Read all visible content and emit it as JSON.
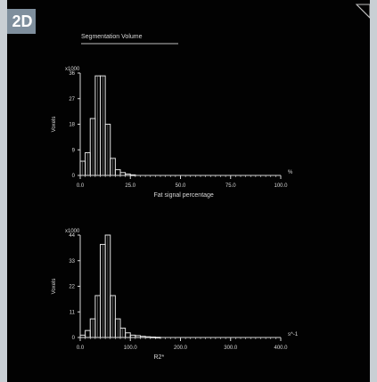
{
  "badge": {
    "text": "2D"
  },
  "viewer": {
    "title": "Segmentation Volume"
  },
  "chart_data": [
    {
      "type": "bar",
      "title": "",
      "xlabel": "Fat signal percentage",
      "ylabel": "Voxels",
      "unit_x": "%",
      "y_multiplier_label": "x1000",
      "xlim": [
        0,
        100
      ],
      "ylim": [
        0,
        36
      ],
      "x_ticks": [
        "0.0",
        "25.0",
        "50.0",
        "75.0",
        "100.0"
      ],
      "y_ticks": [
        "0",
        "9",
        "18",
        "27",
        "36"
      ],
      "categories": [
        "0",
        "2.5",
        "5",
        "7.5",
        "10",
        "12.5",
        "15",
        "17.5",
        "20",
        "22.5",
        "25"
      ],
      "values": [
        5,
        8,
        20,
        35,
        35,
        18,
        6,
        2,
        1,
        0.5,
        0.2
      ]
    },
    {
      "type": "bar",
      "title": "",
      "xlabel": "R2*",
      "ylabel": "Voxels",
      "unit_x": "s^-1",
      "y_multiplier_label": "x1000",
      "xlim": [
        0,
        400
      ],
      "ylim": [
        0,
        44
      ],
      "x_ticks": [
        "0.0",
        "100.0",
        "200.0",
        "300.0",
        "400.0"
      ],
      "y_ticks": [
        "0",
        "11",
        "22",
        "33",
        "44"
      ],
      "categories": [
        "0",
        "10",
        "20",
        "30",
        "40",
        "50",
        "60",
        "70",
        "80",
        "90",
        "100",
        "110",
        "120",
        "130",
        "140",
        "150"
      ],
      "values": [
        1,
        3,
        8,
        18,
        40,
        44,
        18,
        8,
        4,
        2,
        1,
        0.8,
        0.5,
        0.3,
        0.2,
        0.1
      ]
    }
  ]
}
